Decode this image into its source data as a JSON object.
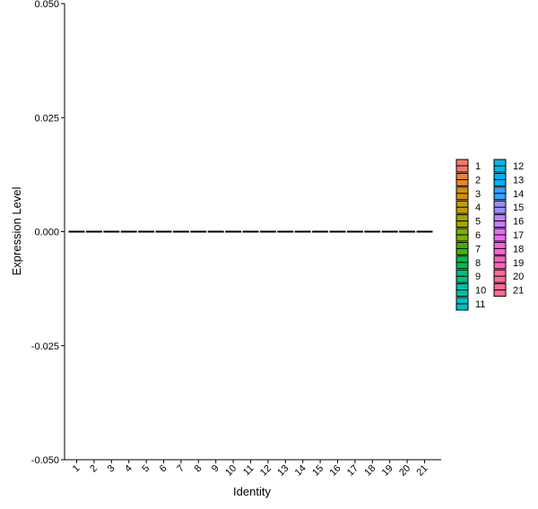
{
  "chart_data": {
    "type": "bar",
    "xlabel": "Identity",
    "ylabel": "Expression Level",
    "ylim": [
      -0.05,
      0.05
    ],
    "yticks": [
      "0.050",
      "0.025",
      "0.000",
      "-0.025",
      "-0.050"
    ],
    "ytick_values": [
      0.05,
      0.025,
      0,
      -0.025,
      -0.05
    ],
    "categories": [
      "1",
      "2",
      "3",
      "4",
      "5",
      "6",
      "7",
      "8",
      "9",
      "10",
      "11",
      "12",
      "13",
      "14",
      "15",
      "16",
      "17",
      "18",
      "19",
      "20",
      "21"
    ],
    "values": [
      0,
      0,
      0,
      0,
      0,
      0,
      0,
      0,
      0,
      0,
      0,
      0,
      0,
      0,
      0,
      0,
      0,
      0,
      0,
      0,
      0
    ],
    "colors": [
      "#F8766D",
      "#EA8331",
      "#D89000",
      "#C09B00",
      "#A3A500",
      "#7CAE00",
      "#39B600",
      "#00BB4E",
      "#00BF7D",
      "#00C1A3",
      "#00BFC4",
      "#00BAE0",
      "#00B0F6",
      "#35A2FF",
      "#9590FF",
      "#C77CFF",
      "#E76BF3",
      "#FA62DB",
      "#FF62BC",
      "#FF6A98",
      "#FF6C91"
    ],
    "legend_position": "right",
    "grid": false
  }
}
